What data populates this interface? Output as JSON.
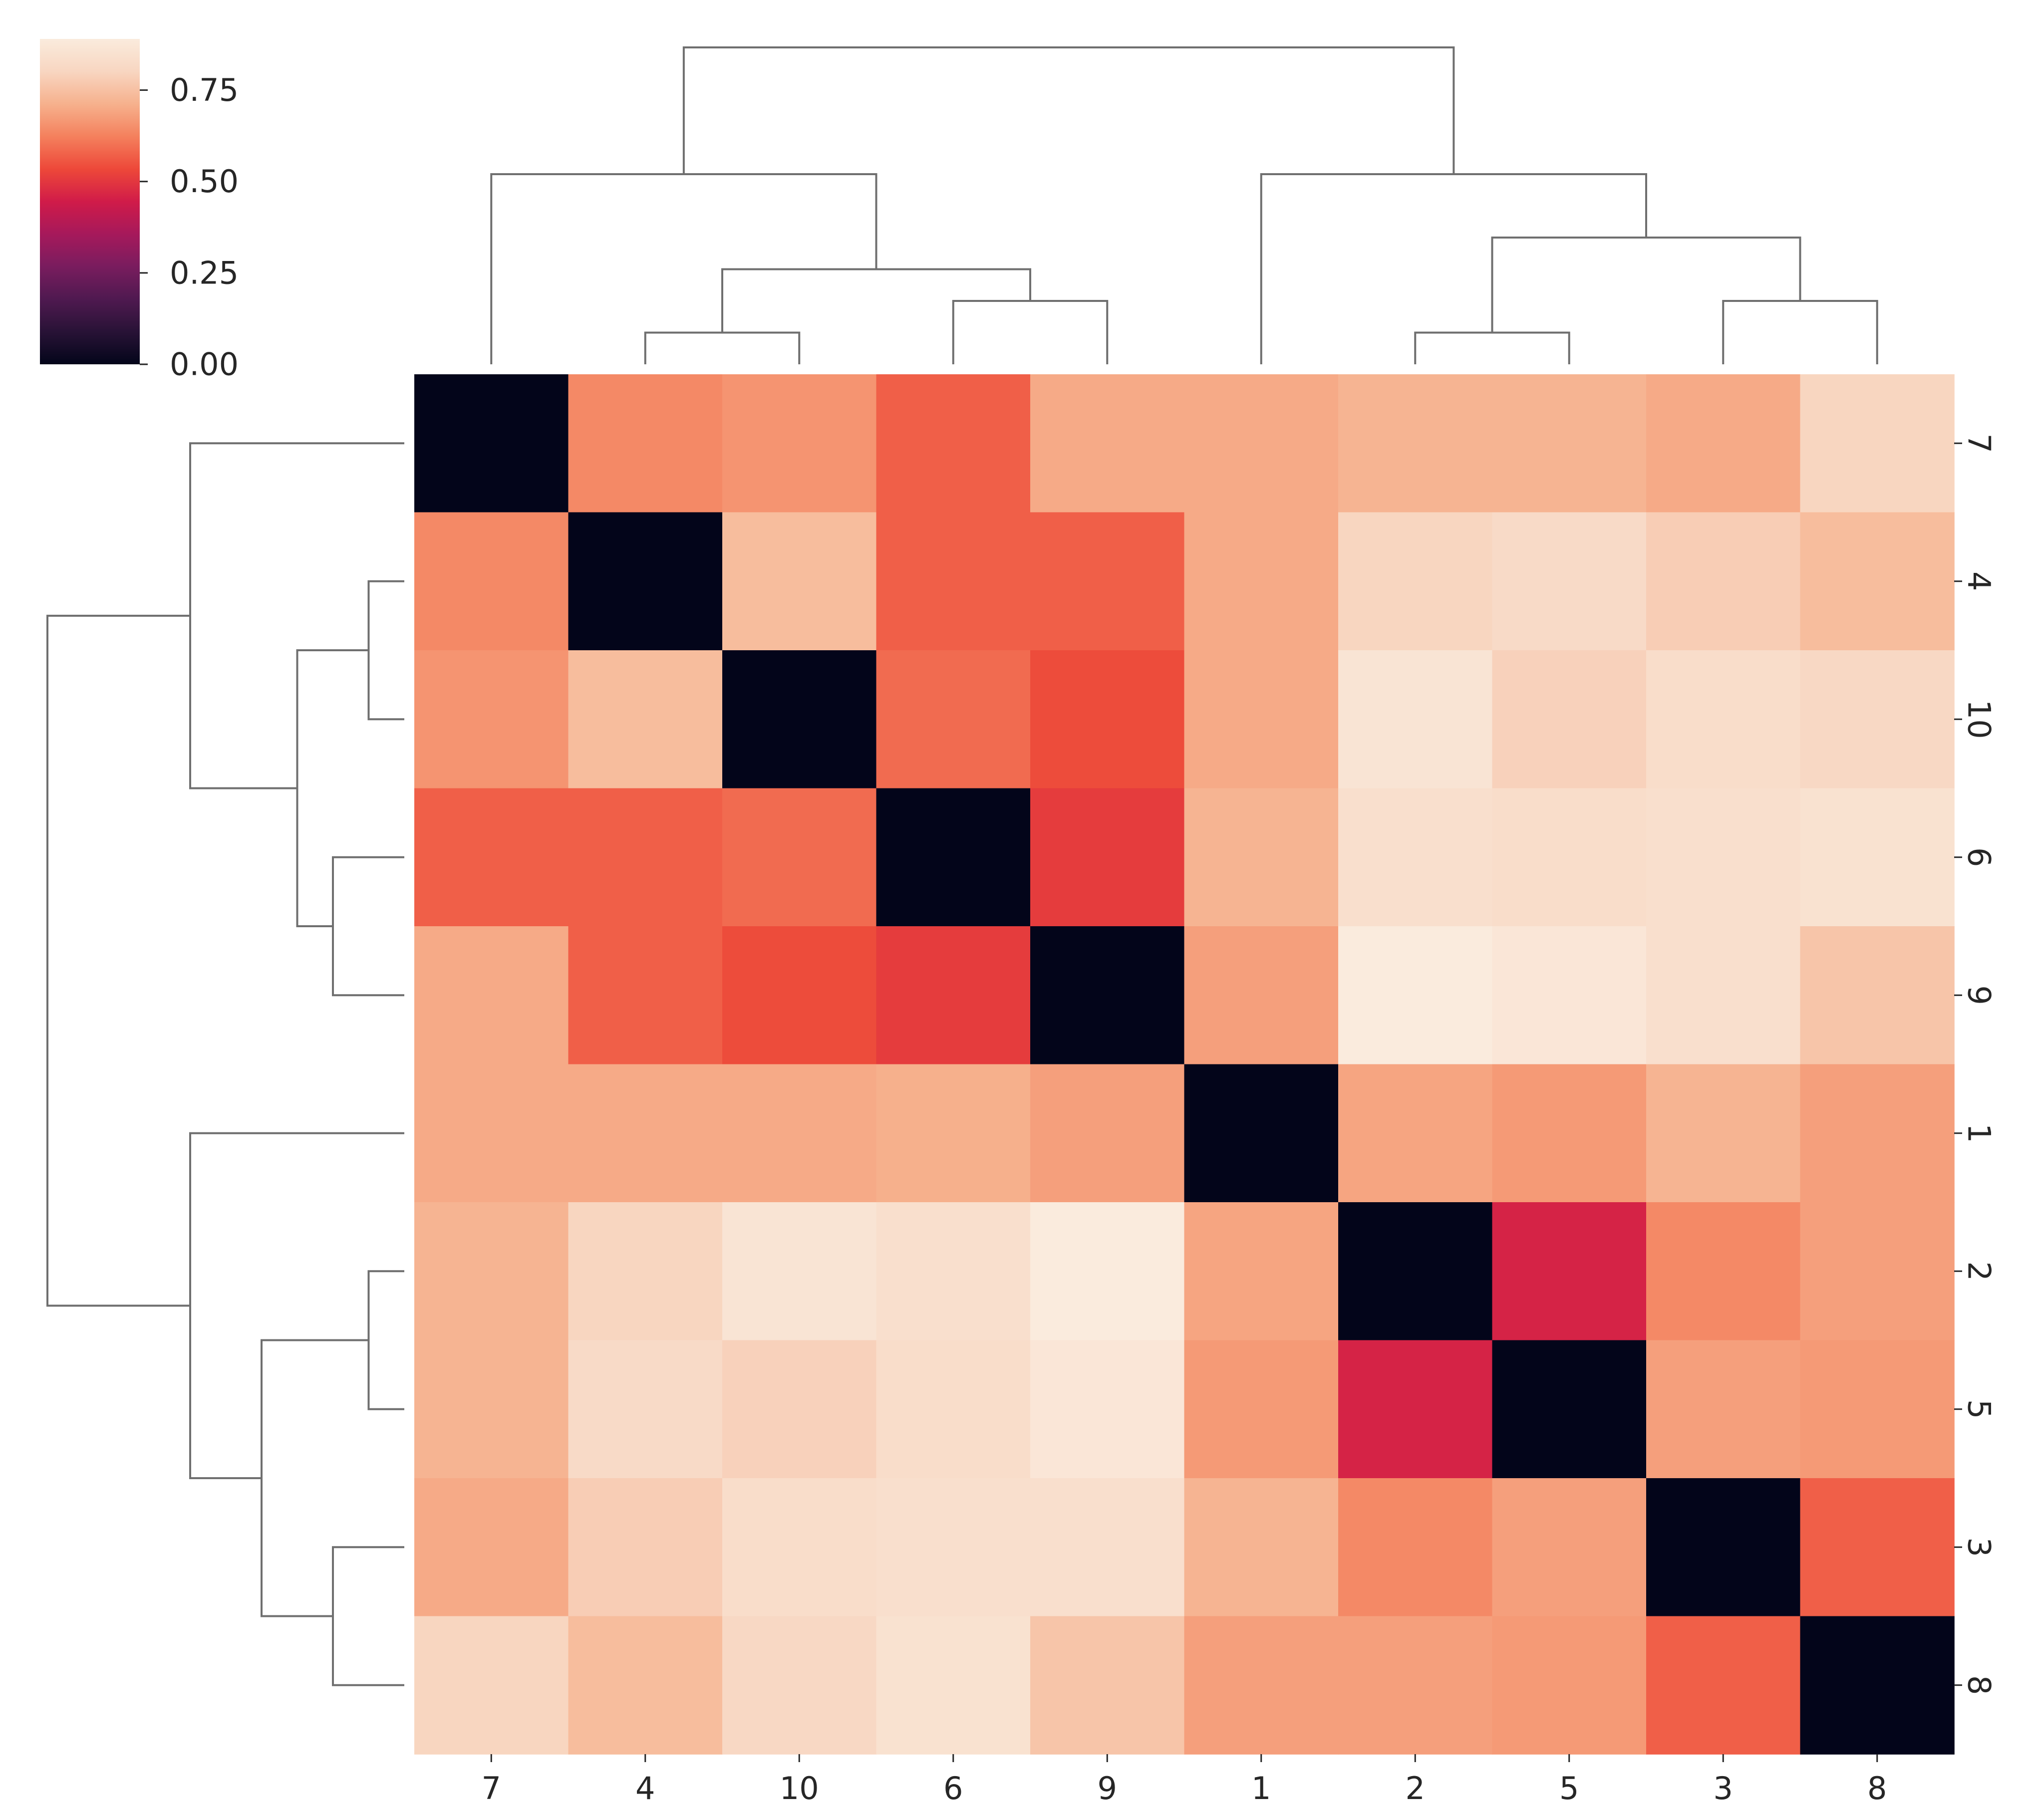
{
  "chart_data": {
    "type": "heatmap",
    "subtype": "clustermap",
    "title": "",
    "xlabel": "",
    "ylabel": "",
    "x_labels": [
      "7",
      "4",
      "10",
      "6",
      "9",
      "1",
      "2",
      "5",
      "3",
      "8"
    ],
    "y_labels": [
      "7",
      "4",
      "10",
      "6",
      "9",
      "1",
      "2",
      "5",
      "3",
      "8"
    ],
    "values": [
      [
        0.0,
        0.64,
        0.66,
        0.57,
        0.7,
        0.7,
        0.72,
        0.72,
        0.7,
        0.8
      ],
      [
        0.64,
        0.0,
        0.74,
        0.57,
        0.57,
        0.7,
        0.8,
        0.82,
        0.78,
        0.74
      ],
      [
        0.66,
        0.74,
        0.0,
        0.59,
        0.54,
        0.7,
        0.86,
        0.79,
        0.83,
        0.81
      ],
      [
        0.57,
        0.57,
        0.59,
        0.0,
        0.51,
        0.72,
        0.84,
        0.83,
        0.84,
        0.85
      ],
      [
        0.7,
        0.57,
        0.54,
        0.51,
        0.0,
        0.68,
        0.89,
        0.87,
        0.84,
        0.76
      ],
      [
        0.7,
        0.7,
        0.7,
        0.71,
        0.68,
        0.0,
        0.69,
        0.67,
        0.72,
        0.68
      ],
      [
        0.72,
        0.8,
        0.86,
        0.84,
        0.89,
        0.69,
        0.0,
        0.46,
        0.64,
        0.68
      ],
      [
        0.72,
        0.82,
        0.79,
        0.83,
        0.87,
        0.67,
        0.46,
        0.0,
        0.68,
        0.67
      ],
      [
        0.7,
        0.78,
        0.83,
        0.84,
        0.84,
        0.72,
        0.64,
        0.68,
        0.0,
        0.57
      ],
      [
        0.8,
        0.74,
        0.81,
        0.85,
        0.76,
        0.68,
        0.68,
        0.67,
        0.57,
        0.0
      ]
    ],
    "vmin": 0.0,
    "vmax": 0.89,
    "colormap": "rocket",
    "colorbar": {
      "ticks": [
        0.0,
        0.25,
        0.5,
        0.75
      ],
      "tick_labels": [
        "0.00",
        "0.25",
        "0.50",
        "0.75"
      ],
      "placement": "top-left"
    },
    "col_dendrogram": {
      "merges": [
        {
          "left": "4",
          "right": "10",
          "height": 0.1
        },
        {
          "left": "6",
          "right": "9",
          "height": 0.2
        },
        {
          "left": "2",
          "right": "5",
          "height": 0.1
        },
        {
          "left": "3",
          "right": "8",
          "height": 0.2
        },
        {
          "left": "4-10",
          "right": "6-9",
          "height": 0.3
        },
        {
          "left": "2-5",
          "right": "3-8",
          "height": 0.4
        },
        {
          "left": "7",
          "right": "4-10-6-9",
          "height": 0.6
        },
        {
          "left": "1",
          "right": "2-5-3-8",
          "height": 0.6
        },
        {
          "left": "7-4-10-6-9",
          "right": "1-2-5-3-8",
          "height": 1.0
        }
      ]
    },
    "row_dendrogram": {
      "mirror_of": "col_dendrogram"
    }
  }
}
